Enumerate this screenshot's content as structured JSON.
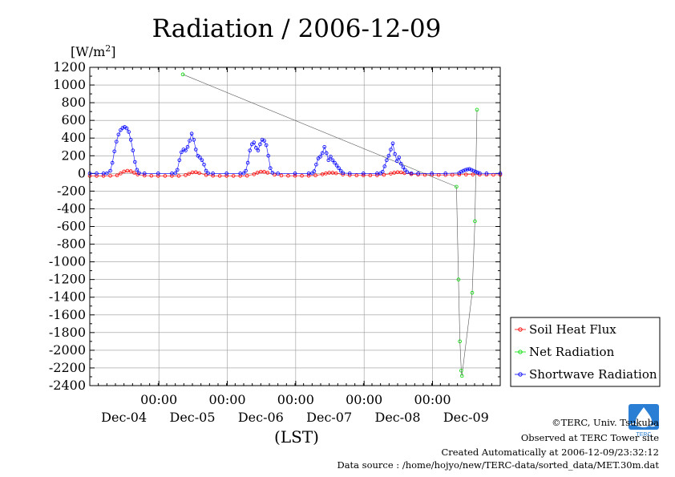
{
  "chart_data": {
    "type": "scatter",
    "title": "Radiation / 2006-12-09",
    "ylabel_unit": "[W/m",
    "ylabel_sup": "2",
    "ylabel_close": "]",
    "xlabel": "(LST)",
    "ylim": [
      -2400,
      1200
    ],
    "yticks": [
      1200,
      1000,
      800,
      600,
      400,
      200,
      0,
      -200,
      -400,
      -600,
      -800,
      -1000,
      -1200,
      -1400,
      -1600,
      -1800,
      -2000,
      -2200,
      -2400
    ],
    "x_time_labels": [
      "00:00",
      "00:00",
      "00:00",
      "00:00",
      "00:00"
    ],
    "x_day_labels": [
      "Dec-04",
      "Dec-05",
      "Dec-06",
      "Dec-07",
      "Dec-08",
      "Dec-09"
    ],
    "grid": true,
    "legend_position": "right",
    "series": [
      {
        "name": "Soil Heat Flux",
        "color": "#ff0000",
        "points": [
          [
            3.0,
            -28
          ],
          [
            3.1,
            -28
          ],
          [
            3.2,
            -28
          ],
          [
            3.3,
            -27
          ],
          [
            3.4,
            -22
          ],
          [
            3.45,
            0
          ],
          [
            3.5,
            22
          ],
          [
            3.55,
            30
          ],
          [
            3.6,
            25
          ],
          [
            3.65,
            8
          ],
          [
            3.7,
            -12
          ],
          [
            3.8,
            -24
          ],
          [
            3.9,
            -27
          ],
          [
            4.0,
            -28
          ],
          [
            4.1,
            -28
          ],
          [
            4.2,
            -28
          ],
          [
            4.3,
            -28
          ],
          [
            4.4,
            -20
          ],
          [
            4.45,
            -4
          ],
          [
            4.5,
            12
          ],
          [
            4.55,
            14
          ],
          [
            4.6,
            4
          ],
          [
            4.7,
            -18
          ],
          [
            4.8,
            -26
          ],
          [
            4.9,
            -28
          ],
          [
            5.0,
            -28
          ],
          [
            5.1,
            -28
          ],
          [
            5.2,
            -28
          ],
          [
            5.3,
            -26
          ],
          [
            5.4,
            -10
          ],
          [
            5.45,
            8
          ],
          [
            5.5,
            20
          ],
          [
            5.55,
            18
          ],
          [
            5.6,
            8
          ],
          [
            5.7,
            -15
          ],
          [
            5.8,
            -24
          ],
          [
            5.9,
            -26
          ],
          [
            6.0,
            -26
          ],
          [
            6.1,
            -26
          ],
          [
            6.2,
            -26
          ],
          [
            6.3,
            -22
          ],
          [
            6.4,
            -10
          ],
          [
            6.45,
            0
          ],
          [
            6.5,
            8
          ],
          [
            6.55,
            8
          ],
          [
            6.6,
            2
          ],
          [
            6.7,
            -12
          ],
          [
            6.8,
            -20
          ],
          [
            6.9,
            -22
          ],
          [
            7.0,
            -22
          ],
          [
            7.1,
            -22
          ],
          [
            7.2,
            -21
          ],
          [
            7.3,
            -16
          ],
          [
            7.4,
            -2
          ],
          [
            7.45,
            8
          ],
          [
            7.5,
            14
          ],
          [
            7.55,
            12
          ],
          [
            7.6,
            4
          ],
          [
            7.7,
            -8
          ],
          [
            7.8,
            -14
          ],
          [
            7.9,
            -16
          ],
          [
            8.0,
            -17
          ],
          [
            8.1,
            -17
          ],
          [
            8.2,
            -17
          ],
          [
            8.3,
            -16
          ],
          [
            8.4,
            -14
          ],
          [
            8.5,
            -12
          ],
          [
            8.6,
            -12
          ],
          [
            8.7,
            -14
          ],
          [
            8.8,
            -15
          ],
          [
            8.9,
            -15
          ],
          [
            9.0,
            -15
          ]
        ]
      },
      {
        "name": "Net Radiation",
        "color": "#00dd00",
        "points": [
          [
            4.36,
            1120
          ],
          [
            8.36,
            -150
          ],
          [
            8.39,
            -1200
          ],
          [
            8.41,
            -1900
          ],
          [
            8.43,
            -2230
          ],
          [
            8.44,
            -2290
          ],
          [
            8.59,
            -1350
          ],
          [
            8.63,
            -540
          ],
          [
            8.66,
            720
          ]
        ]
      },
      {
        "name": "Shortwave Radiation",
        "color": "#0000ff",
        "points": [
          [
            3.0,
            0
          ],
          [
            3.1,
            0
          ],
          [
            3.2,
            0
          ],
          [
            3.25,
            2
          ],
          [
            3.3,
            30
          ],
          [
            3.33,
            120
          ],
          [
            3.36,
            250
          ],
          [
            3.39,
            360
          ],
          [
            3.42,
            440
          ],
          [
            3.45,
            490
          ],
          [
            3.48,
            515
          ],
          [
            3.51,
            525
          ],
          [
            3.54,
            510
          ],
          [
            3.57,
            470
          ],
          [
            3.6,
            380
          ],
          [
            3.63,
            260
          ],
          [
            3.66,
            130
          ],
          [
            3.69,
            40
          ],
          [
            3.72,
            5
          ],
          [
            3.8,
            0
          ],
          [
            4.0,
            0
          ],
          [
            4.2,
            0
          ],
          [
            4.25,
            3
          ],
          [
            4.28,
            40
          ],
          [
            4.31,
            150
          ],
          [
            4.34,
            240
          ],
          [
            4.37,
            270
          ],
          [
            4.4,
            260
          ],
          [
            4.43,
            300
          ],
          [
            4.46,
            370
          ],
          [
            4.49,
            450
          ],
          [
            4.52,
            380
          ],
          [
            4.55,
            270
          ],
          [
            4.58,
            200
          ],
          [
            4.61,
            180
          ],
          [
            4.64,
            150
          ],
          [
            4.67,
            100
          ],
          [
            4.7,
            30
          ],
          [
            4.73,
            3
          ],
          [
            4.8,
            0
          ],
          [
            5.0,
            0
          ],
          [
            5.2,
            0
          ],
          [
            5.25,
            2
          ],
          [
            5.28,
            30
          ],
          [
            5.31,
            120
          ],
          [
            5.34,
            260
          ],
          [
            5.37,
            330
          ],
          [
            5.4,
            350
          ],
          [
            5.43,
            290
          ],
          [
            5.46,
            260
          ],
          [
            5.49,
            330
          ],
          [
            5.52,
            380
          ],
          [
            5.55,
            370
          ],
          [
            5.58,
            320
          ],
          [
            5.61,
            200
          ],
          [
            5.64,
            60
          ],
          [
            5.67,
            8
          ],
          [
            5.75,
            0
          ],
          [
            6.0,
            0
          ],
          [
            6.2,
            0
          ],
          [
            6.25,
            2
          ],
          [
            6.28,
            25
          ],
          [
            6.31,
            100
          ],
          [
            6.34,
            170
          ],
          [
            6.37,
            190
          ],
          [
            6.4,
            230
          ],
          [
            6.43,
            300
          ],
          [
            6.46,
            230
          ],
          [
            6.49,
            150
          ],
          [
            6.52,
            190
          ],
          [
            6.55,
            150
          ],
          [
            6.58,
            120
          ],
          [
            6.61,
            90
          ],
          [
            6.64,
            60
          ],
          [
            6.67,
            30
          ],
          [
            6.7,
            5
          ],
          [
            6.8,
            0
          ],
          [
            7.0,
            0
          ],
          [
            7.2,
            0
          ],
          [
            7.25,
            2
          ],
          [
            7.28,
            20
          ],
          [
            7.31,
            80
          ],
          [
            7.34,
            150
          ],
          [
            7.37,
            200
          ],
          [
            7.4,
            270
          ],
          [
            7.43,
            340
          ],
          [
            7.46,
            220
          ],
          [
            7.49,
            140
          ],
          [
            7.52,
            180
          ],
          [
            7.55,
            110
          ],
          [
            7.58,
            70
          ],
          [
            7.61,
            40
          ],
          [
            7.64,
            15
          ],
          [
            7.7,
            2
          ],
          [
            7.8,
            0
          ],
          [
            8.0,
            0
          ],
          [
            8.2,
            0
          ],
          [
            8.4,
            5
          ],
          [
            8.43,
            20
          ],
          [
            8.46,
            30
          ],
          [
            8.49,
            40
          ],
          [
            8.52,
            45
          ],
          [
            8.55,
            50
          ],
          [
            8.58,
            40
          ],
          [
            8.61,
            30
          ],
          [
            8.64,
            20
          ],
          [
            8.67,
            10
          ],
          [
            8.7,
            3
          ],
          [
            8.8,
            0
          ],
          [
            9.0,
            0
          ]
        ]
      }
    ]
  },
  "footer": {
    "copyright": "©TERC, Univ. Tsukuba",
    "observed": "Observed at TERC Tower site",
    "created": "Created Automatically at 2006-12-09/23:32:12",
    "source": "Data source : /home/hojyo/new/TERC-data/sorted_data/MET.30m.dat"
  },
  "logo": {
    "text": "TERC"
  }
}
